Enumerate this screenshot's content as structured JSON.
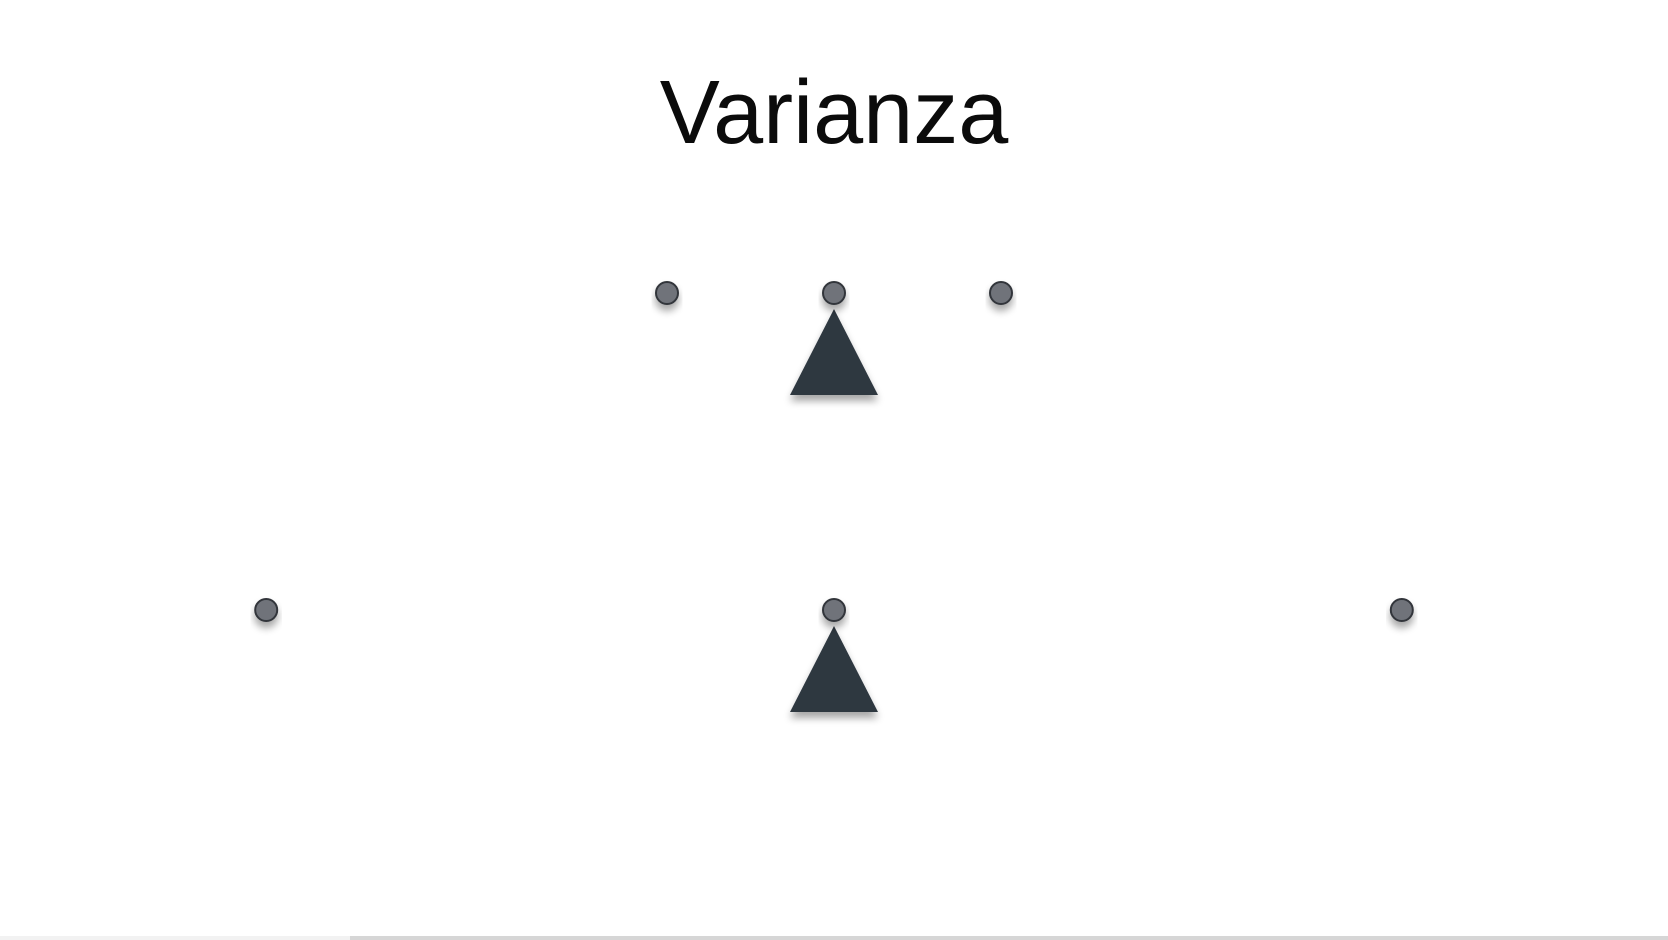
{
  "slide": {
    "title": "Varianza"
  },
  "colors": {
    "beam": "#3a3d42",
    "fulcrum": "#2f3741",
    "ball_fill": "#6f737a",
    "ball_stroke": "#33363b",
    "background": "#ffffff"
  },
  "seesaws": [
    {
      "name": "seesaw-low-variance",
      "ball_positions": [
        -1,
        0,
        1
      ]
    },
    {
      "name": "seesaw-high-variance",
      "ball_positions": [
        -3.4,
        0,
        3.4
      ]
    }
  ],
  "progress": {
    "fraction": 0.21
  }
}
